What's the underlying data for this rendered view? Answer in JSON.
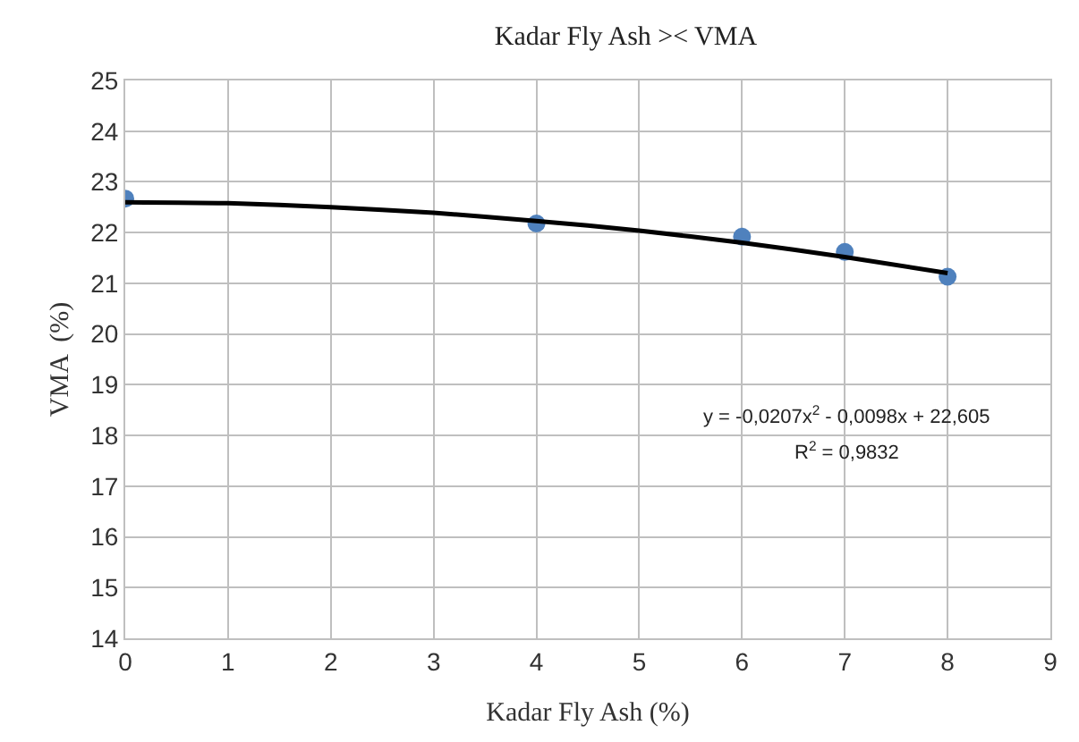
{
  "chart_data": {
    "type": "scatter",
    "title": "Kadar Fly Ash >< VMA",
    "xlabel": "Kadar Fly Ash (%)",
    "ylabel": "VMA  (%)",
    "series": [
      {
        "color": "#4f81bd",
        "x": [
          0,
          4,
          6,
          7,
          8
        ],
        "values": [
          22.67,
          22.18,
          21.92,
          21.62,
          21.13
        ],
        "marker": "circle"
      },
      {
        "type": "line",
        "color": "#000000",
        "x": [
          0,
          1,
          2,
          3,
          4,
          5,
          6,
          7,
          8
        ],
        "values": [
          22.6,
          22.58,
          22.5,
          22.39,
          22.23,
          22.04,
          21.8,
          21.52,
          21.2
        ],
        "line_style": "solid"
      }
    ],
    "annotations": [
      "y = -0,0207x$^{2}$ - 0,0098x + 22,605",
      "R$^{2}$ = 0,9832"
    ],
    "xlim": [
      0,
      9
    ],
    "xticks": [
      0,
      1,
      2,
      3,
      4,
      5,
      6,
      7,
      8,
      9
    ],
    "ylim": [
      14,
      25
    ],
    "yticks": [
      14,
      15,
      16,
      17,
      18,
      19,
      20,
      21,
      22,
      23,
      24,
      25
    ],
    "grid": true
  }
}
